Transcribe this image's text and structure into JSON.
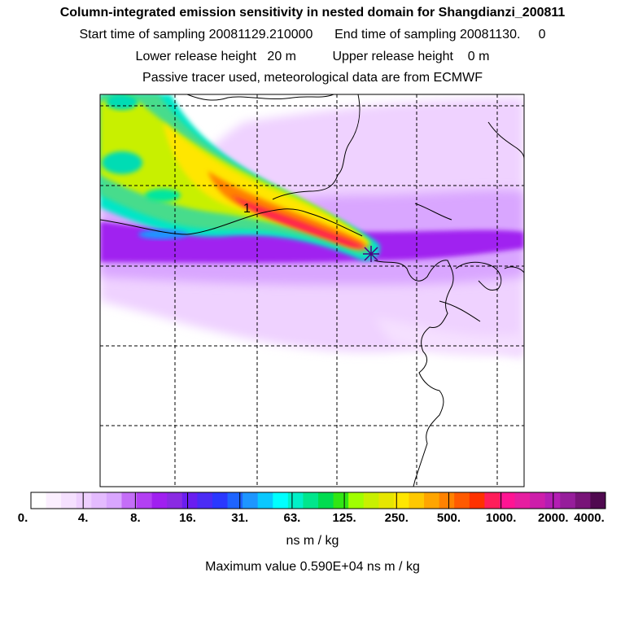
{
  "title": {
    "line1": "Column-integrated emission sensitivity in nested domain for Shangdianzi_200811",
    "line2": "Start time of sampling 20081129.210000      End time of sampling 20081130.     0",
    "line3": "Lower release height   20 m          Upper release height    0 m",
    "line4": "Passive tracer used, meteorological data are from ECMWF"
  },
  "map": {
    "marker_label": "1",
    "colors": {
      "lavender": "#efd2ff",
      "light_purple": "#d9a6ff",
      "purple": "#a020f0",
      "green": "#46dc8c",
      "yellow": "#e6f020",
      "red": "#ff2050",
      "marker": "#4b0082"
    }
  },
  "colorbar": {
    "colors": [
      "#ffffff",
      "#fbefff",
      "#f5e0ff",
      "#eecfff",
      "#e4bbff",
      "#d9a6ff",
      "#c46ef7",
      "#b340f3",
      "#a020f0",
      "#8a2be2",
      "#6a1ef0",
      "#4b2cf5",
      "#2a38ff",
      "#1e64ff",
      "#1e96ff",
      "#0ac8ff",
      "#00ffff",
      "#00f0c8",
      "#00e68c",
      "#00dc50",
      "#32e614",
      "#a0ff00",
      "#c8f000",
      "#e6e600",
      "#ffe600",
      "#ffc800",
      "#ffa500",
      "#ff8200",
      "#ff5a00",
      "#ff3200",
      "#ff1e5a",
      "#ff1493",
      "#e61ea0",
      "#cd1eaa",
      "#b41eb4",
      "#961e9b",
      "#781478",
      "#500a50"
    ],
    "ticks": [
      "0.",
      "4.",
      "8.",
      "16.",
      "31.",
      "63.",
      "125.",
      "250.",
      "500.",
      "1000.",
      "2000.",
      "4000."
    ],
    "unit": "ns m / kg"
  },
  "max_value_text": "Maximum value  0.590E+04 ns m / kg"
}
